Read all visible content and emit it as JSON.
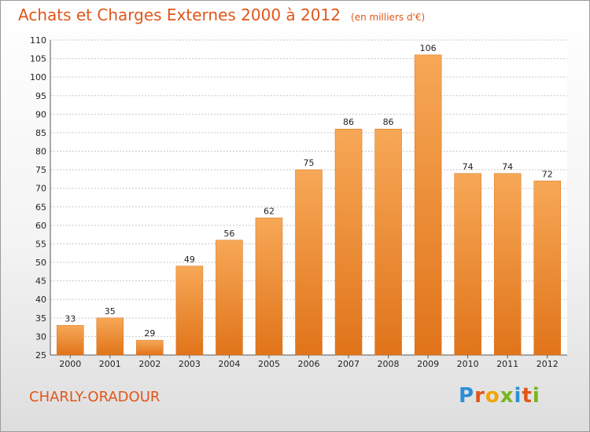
{
  "chart_data": {
    "type": "bar",
    "title": "Achats et Charges Externes 2000 à 2012",
    "subtitle": "(en milliers d'€)",
    "categories": [
      "2000",
      "2001",
      "2002",
      "2003",
      "2004",
      "2005",
      "2006",
      "2007",
      "2008",
      "2009",
      "2010",
      "2011",
      "2012"
    ],
    "values": [
      33,
      35,
      29,
      49,
      56,
      62,
      75,
      86,
      86,
      106,
      74,
      74,
      72
    ],
    "ylim": [
      25,
      110
    ],
    "yticks": [
      25,
      30,
      35,
      40,
      45,
      50,
      55,
      60,
      65,
      70,
      75,
      80,
      85,
      90,
      95,
      100,
      105,
      110
    ],
    "grid": true,
    "bar_color": "#f08a2c"
  },
  "commune": "CHARLY-ORADOUR",
  "logo": {
    "text": "Proxiti",
    "letters": [
      {
        "ch": "P",
        "color": "#2a8fd6"
      },
      {
        "ch": "r",
        "color": "#e0561a"
      },
      {
        "ch": "o",
        "color": "#f2a400"
      },
      {
        "ch": "x",
        "color": "#7ab51d"
      },
      {
        "ch": "i",
        "color": "#2a8fd6"
      },
      {
        "ch": "t",
        "color": "#e0561a"
      },
      {
        "ch": "i",
        "color": "#7ab51d"
      }
    ]
  }
}
